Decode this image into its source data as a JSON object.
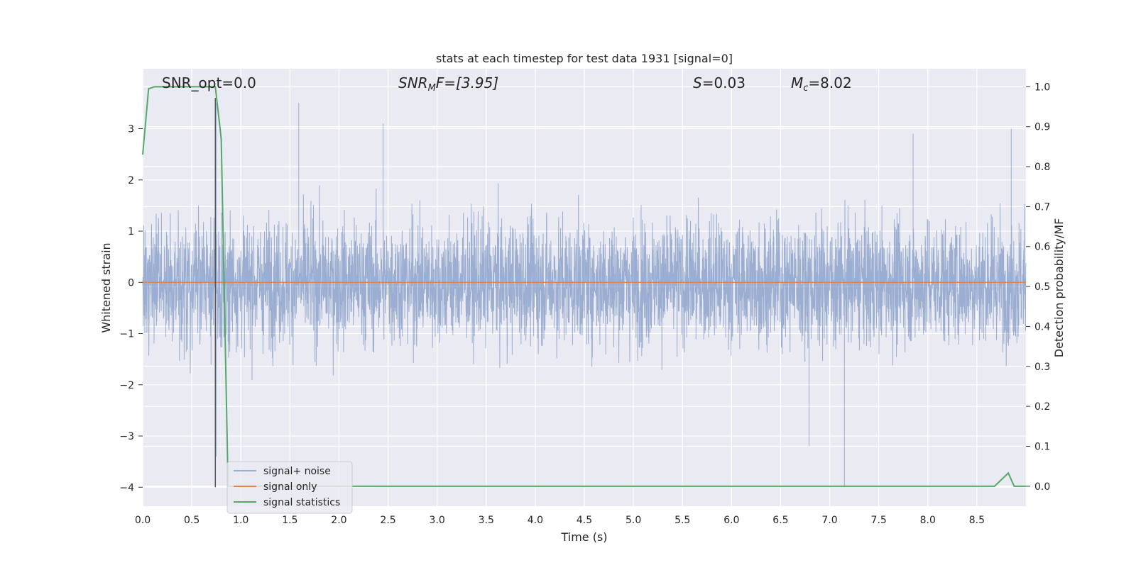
{
  "chart_data": {
    "type": "line",
    "title": "stats at each timestep for test data 1931 [signal=0]",
    "xlabel": "Time (s)",
    "ylabel": "Whitened strain",
    "ylabel_right": "Detection probability/MF",
    "xlim": [
      0.0,
      9.0
    ],
    "ylim": [
      -4.37,
      4.17
    ],
    "ylim_right": [
      -0.05,
      1.045
    ],
    "xticks": [
      0.0,
      0.5,
      1.0,
      1.5,
      2.0,
      2.5,
      3.0,
      3.5,
      4.0,
      4.5,
      5.0,
      5.5,
      6.0,
      6.5,
      7.0,
      7.5,
      8.0,
      8.5
    ],
    "xtick_labels": [
      "0.0",
      "0.5",
      "1.0",
      "1.5",
      "2.0",
      "2.5",
      "3.0",
      "3.5",
      "4.0",
      "4.5",
      "5.0",
      "5.5",
      "6.0",
      "6.5",
      "7.0",
      "7.5",
      "8.0",
      "8.5"
    ],
    "yticks": [
      3,
      2,
      1,
      0,
      -1,
      -2,
      -3,
      -4
    ],
    "ytick_labels": [
      "3",
      "2",
      "1",
      "0",
      "−1",
      "−2",
      "−3",
      "−4"
    ],
    "yticks_right": [
      1.0,
      0.9,
      0.8,
      0.7,
      0.6,
      0.5,
      0.4,
      0.3,
      0.2,
      0.1,
      0.0
    ],
    "ytick_labels_right": [
      "1.0",
      "0.9",
      "0.8",
      "0.7",
      "0.6",
      "0.5",
      "0.4",
      "0.3",
      "0.2",
      "0.1",
      "0.0"
    ],
    "grid": true,
    "legend_position": "lower-left",
    "annotations": {
      "snr_opt": "SNR_opt=0.0",
      "snr_mf_prefix": "SNR",
      "snr_mf_sub": "M",
      "snr_mf_suffix": "F=[3.95]",
      "s_prefix": "S",
      "s_suffix": "=0.03",
      "mc_prefix": "M",
      "mc_sub": "c",
      "mc_suffix": "=8.02"
    },
    "series": [
      {
        "name": "signal+ noise",
        "axis": "left",
        "color": "#4c72b0",
        "note_values": "dense noise, roughly uniform envelope",
        "envelope": [
          -2.4,
          3.1
        ],
        "peaks": [
          [
            1.59,
            3.5
          ],
          [
            2.45,
            3.1
          ],
          [
            7.15,
            -4.0
          ],
          [
            6.79,
            -3.2
          ],
          [
            8.85,
            3.0
          ],
          [
            7.85,
            2.9
          ],
          [
            0.75,
            -3.4
          ],
          [
            0.75,
            3.5
          ]
        ]
      },
      {
        "name": "signal only",
        "axis": "left",
        "color": "#dd8452",
        "x": [
          0.0,
          9.0
        ],
        "y": [
          0.0,
          0.0
        ]
      },
      {
        "name": "signal statistics",
        "axis": "right",
        "color": "#55a868",
        "x": [
          0.0,
          0.06,
          0.12,
          0.5,
          0.74,
          0.8,
          0.87,
          1.0,
          8.0,
          8.68,
          8.82,
          8.88,
          9.0
        ],
        "y": [
          0.83,
          0.995,
          1.0,
          1.0,
          1.0,
          0.87,
          0.0,
          0.0,
          0.0,
          0.0,
          0.033,
          0.0,
          0.0
        ]
      }
    ],
    "vertical_line": {
      "x": 0.74,
      "color": "#555555",
      "y_from": -4.0,
      "y_to": 3.6
    }
  }
}
